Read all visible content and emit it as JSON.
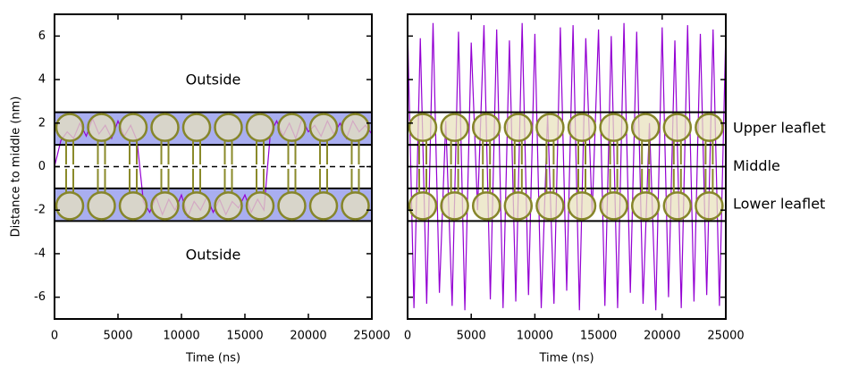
{
  "chart_data": [
    {
      "type": "line",
      "color": "#9400d3",
      "x_label": "Time (ns)",
      "y_label": "Distance to middle (nm)",
      "annotations": [
        "Outside",
        "Outside"
      ],
      "bands": [
        [
          1,
          2.5
        ],
        [
          -2.5,
          -1
        ]
      ],
      "band_color": "#a9aef0",
      "x": [
        0,
        500,
        1000,
        1500,
        2000,
        2500,
        3000,
        3500,
        4000,
        4500,
        5000,
        5500,
        6000,
        6500,
        7000,
        7500,
        8000,
        8500,
        9000,
        9500,
        10000,
        10500,
        11000,
        11500,
        12000,
        12500,
        13000,
        13500,
        14000,
        14500,
        15000,
        15500,
        16000,
        16500,
        17000,
        17500,
        18000,
        18500,
        19000,
        19500,
        20000,
        20500,
        21000,
        21500,
        22000,
        22500,
        23000,
        23500,
        24000,
        24500,
        25000
      ],
      "values": [
        0.0,
        1.2,
        1.6,
        1.3,
        2.0,
        1.4,
        2.2,
        1.5,
        1.9,
        1.3,
        2.1,
        1.4,
        1.9,
        1.2,
        -1.6,
        -2.1,
        -1.4,
        -2.2,
        -1.5,
        -2.0,
        -1.3,
        -2.3,
        -1.6,
        -2.0,
        -1.4,
        -2.1,
        -1.5,
        -2.2,
        -1.6,
        -1.9,
        -1.3,
        -2.1,
        -1.5,
        -2.0,
        1.5,
        2.1,
        1.4,
        2.0,
        1.3,
        2.2,
        1.6,
        1.9,
        1.4,
        2.1,
        1.5,
        2.0,
        1.3,
        2.1,
        1.6,
        1.9,
        1.5
      ],
      "xlim": [
        0,
        25000
      ],
      "ylim": [
        -7,
        7
      ],
      "xticks": [
        0,
        5000,
        10000,
        15000,
        20000,
        25000
      ],
      "yticks": [
        -6,
        -4,
        -2,
        0,
        2,
        4,
        6
      ]
    },
    {
      "type": "line",
      "color": "#9400d3",
      "x_label": "Time (ns)",
      "leaflet_labels": [
        "Upper leaflet",
        "Middle",
        "Lower leaflet"
      ],
      "bands": [
        [
          1,
          2.5
        ],
        [
          -2.5,
          -1
        ]
      ],
      "x": [
        0,
        500,
        1000,
        1500,
        2000,
        2500,
        3000,
        3500,
        4000,
        4500,
        5000,
        5500,
        6000,
        6500,
        7000,
        7500,
        8000,
        8500,
        9000,
        9500,
        10000,
        10500,
        11000,
        11500,
        12000,
        12500,
        13000,
        13500,
        14000,
        14500,
        15000,
        15500,
        16000,
        16500,
        17000,
        17500,
        18000,
        18500,
        19000,
        19500,
        20000,
        20500,
        21000,
        21500,
        22000,
        22500,
        23000,
        23500,
        24000,
        24500,
        25000
      ],
      "values": [
        6.4,
        -6.5,
        5.9,
        -6.3,
        6.6,
        -5.8,
        2.1,
        -6.4,
        6.2,
        -6.6,
        5.7,
        -2.0,
        6.5,
        -6.1,
        6.3,
        -6.5,
        5.8,
        -6.2,
        6.6,
        -5.9,
        6.1,
        -6.5,
        2.4,
        -6.3,
        6.4,
        -5.7,
        6.5,
        -6.6,
        5.9,
        -2.2,
        6.3,
        -6.4,
        6.0,
        -6.5,
        6.6,
        -5.8,
        6.2,
        -6.3,
        2.0,
        -6.6,
        6.4,
        -6.0,
        5.8,
        -6.5,
        6.5,
        -6.2,
        6.1,
        -5.9,
        6.3,
        -6.4,
        6.2
      ],
      "xlim": [
        0,
        25000
      ],
      "ylim": [
        -7,
        7
      ],
      "xticks": [
        0,
        5000,
        10000,
        15000,
        20000,
        25000
      ],
      "yticks": [
        -6,
        -4,
        -2,
        0,
        2,
        4,
        6
      ]
    }
  ]
}
